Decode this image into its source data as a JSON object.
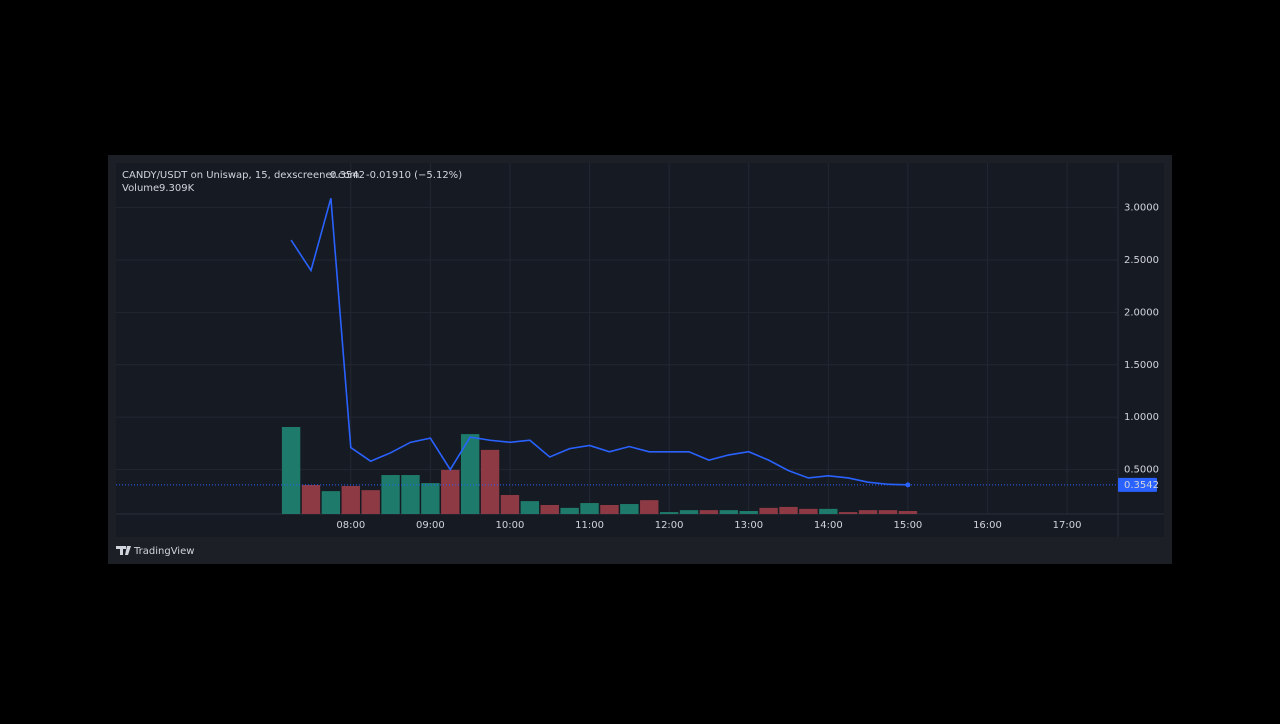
{
  "chart_data": {
    "type": "line",
    "change_label": "-0.01910 (−5.12%)",
    "brand": "TradingView",
    "x": [
      7.25,
      7.5,
      7.75,
      8,
      8.25,
      8.5,
      8.75,
      9,
      9.25,
      9.5,
      9.75,
      10,
      10.25,
      10.5,
      10.75,
      11,
      11.25,
      11.5,
      11.75,
      12,
      12.25,
      12.5,
      12.75,
      13,
      13.25,
      13.5,
      13.75,
      14,
      14.25,
      14.5,
      14.75,
      15
    ],
    "series": [
      {
        "name": "CANDY/USDT on Uniswap, 15, dexscreener.com",
        "color": "#2962ff",
        "values": [
          2.69,
          2.4,
          3.09,
          0.71,
          0.58,
          0.66,
          0.76,
          0.8,
          0.5,
          0.81,
          0.78,
          0.76,
          0.78,
          0.62,
          0.7,
          0.73,
          0.67,
          0.72,
          0.67,
          0.67,
          0.67,
          0.59,
          0.64,
          0.67,
          0.59,
          0.49,
          0.42,
          0.44,
          0.42,
          0.38,
          0.36,
          0.3542
        ]
      },
      {
        "name": "Volume",
        "type": "bar",
        "values": [
          270000,
          90000,
          71000,
          87000,
          74000,
          121000,
          121000,
          96000,
          137000,
          248000,
          199000,
          59000,
          40000,
          28000,
          19000,
          34000,
          28000,
          31000,
          43000,
          6000,
          12000,
          12000,
          12000,
          9300,
          19000,
          22000,
          16000,
          16000,
          6000,
          12000,
          12000,
          9309
        ],
        "value_labels": [
          null,
          null,
          null,
          null,
          null,
          null,
          null,
          null,
          null,
          null,
          null,
          null,
          null,
          null,
          null,
          null,
          null,
          null,
          null,
          null,
          null,
          null,
          null,
          null,
          null,
          null,
          null,
          null,
          null,
          null,
          null,
          "9.309K"
        ],
        "label_color": "#ef5350",
        "colors": [
          "#1e7a6a",
          "#8d3a44",
          "#1e7a6a",
          "#8d3a44",
          "#8d3a44",
          "#1e7a6a",
          "#1e7a6a",
          "#1e7a6a",
          "#8d3a44",
          "#1e7a6a",
          "#8d3a44",
          "#8d3a44",
          "#1e7a6a",
          "#8d3a44",
          "#1e7a6a",
          "#1e7a6a",
          "#8d3a44",
          "#1e7a6a",
          "#8d3a44",
          "#1e7a6a",
          "#1e7a6a",
          "#8d3a44",
          "#1e7a6a",
          "#1e7a6a",
          "#8d3a44",
          "#8d3a44",
          "#8d3a44",
          "#1e7a6a",
          "#8d3a44",
          "#8d3a44",
          "#8d3a44",
          "#8d3a44"
        ]
      }
    ],
    "xlim": [
      5.05,
      17.64
    ],
    "xticks": [
      {
        "value": 8,
        "label": "08:00"
      },
      {
        "value": 9,
        "label": "09:00"
      },
      {
        "value": 10,
        "label": "10:00"
      },
      {
        "value": 11,
        "label": "11:00"
      },
      {
        "value": 12,
        "label": "12:00"
      },
      {
        "value": 13,
        "label": "13:00"
      },
      {
        "value": 14,
        "label": "14:00"
      },
      {
        "value": 15,
        "label": "15:00"
      },
      {
        "value": 16,
        "label": "16:00"
      },
      {
        "value": 17,
        "label": "17:00"
      }
    ],
    "ylim": [
      0.076,
      3.426
    ],
    "yticks": [
      {
        "value": 0.5,
        "label": "0.5000"
      },
      {
        "value": 1,
        "label": "1.0000"
      },
      {
        "value": 1.5,
        "label": "1.5000"
      },
      {
        "value": 2,
        "label": "2.0000"
      },
      {
        "value": 2.5,
        "label": "2.5000"
      },
      {
        "value": 3,
        "label": "3.0000"
      }
    ],
    "grid": true
  }
}
